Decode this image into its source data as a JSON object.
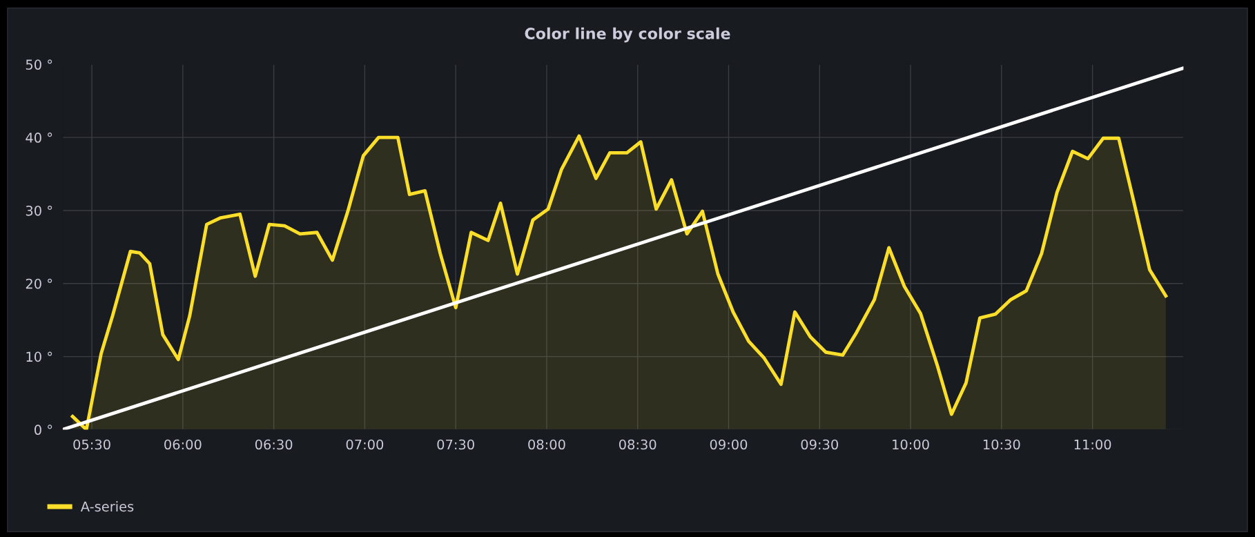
{
  "chart_data": {
    "type": "area",
    "title": "Color line by color scale",
    "xlim": [
      5.34,
      11.5
    ],
    "ylim": [
      0,
      50
    ],
    "xticks": [
      {
        "value": 5.5,
        "label": "05:30"
      },
      {
        "value": 6,
        "label": "06:00"
      },
      {
        "value": 6.5,
        "label": "06:30"
      },
      {
        "value": 7,
        "label": "07:00"
      },
      {
        "value": 7.5,
        "label": "07:30"
      },
      {
        "value": 8,
        "label": "08:00"
      },
      {
        "value": 8.5,
        "label": "08:30"
      },
      {
        "value": 9,
        "label": "09:00"
      },
      {
        "value": 9.5,
        "label": "09:30"
      },
      {
        "value": 10,
        "label": "10:00"
      },
      {
        "value": 10.5,
        "label": "10:30"
      },
      {
        "value": 11,
        "label": "11:00"
      }
    ],
    "yticks": [
      {
        "value": 0,
        "label": "0 °"
      },
      {
        "value": 10,
        "label": "10 °"
      },
      {
        "value": 20,
        "label": "20 °"
      },
      {
        "value": 30,
        "label": "30 °"
      },
      {
        "value": 40,
        "label": "40 °"
      },
      {
        "value": 50,
        "label": "50 °"
      }
    ],
    "grid": true,
    "legend": "bottom left",
    "series": [
      {
        "name": "A-series",
        "color": "#fade2a",
        "x": [
          5.394,
          5.47,
          5.551,
          5.614,
          5.712,
          5.763,
          5.818,
          5.89,
          5.975,
          6.038,
          6.131,
          6.208,
          6.314,
          6.398,
          6.475,
          6.559,
          6.644,
          6.737,
          6.822,
          6.907,
          6.992,
          7.076,
          7.182,
          7.246,
          7.331,
          7.415,
          7.5,
          7.585,
          7.678,
          7.746,
          7.839,
          7.924,
          8.008,
          8.081,
          8.178,
          8.271,
          8.347,
          8.441,
          8.517,
          8.602,
          8.686,
          8.771,
          8.856,
          8.941,
          9.025,
          9.11,
          9.195,
          9.288,
          9.364,
          9.449,
          9.534,
          9.627,
          9.703,
          9.801,
          9.881,
          9.966,
          10.055,
          10.148,
          10.225,
          10.305,
          10.381,
          10.466,
          10.551,
          10.636,
          10.72,
          10.805,
          10.89,
          10.975,
          11.059,
          11.144,
          11.229,
          11.314,
          11.403
        ],
        "values": [
          1.8,
          0,
          10.4,
          15.6,
          24.4,
          24.2,
          22.7,
          13,
          9.6,
          15.6,
          28.1,
          29,
          29.5,
          21,
          28.1,
          27.9,
          26.8,
          27,
          23.2,
          29.9,
          37.5,
          40,
          40,
          32.2,
          32.7,
          24.1,
          16.7,
          27,
          25.9,
          31,
          21.3,
          28.7,
          30.2,
          35.6,
          40.2,
          34.4,
          37.9,
          37.9,
          39.4,
          30.2,
          34.2,
          26.8,
          29.9,
          21.3,
          16.1,
          12.1,
          9.8,
          6.2,
          16.1,
          12.7,
          10.6,
          10.2,
          13.3,
          17.8,
          24.9,
          19.6,
          15.9,
          8.7,
          2.1,
          6.4,
          15.3,
          15.8,
          17.8,
          19,
          24.1,
          32.5,
          38.1,
          37.1,
          39.9,
          39.9,
          31,
          21.9,
          18.3
        ]
      },
      {
        "type": "line",
        "color": "#ffffff",
        "x": [
          5.34,
          11.5
        ],
        "values": [
          0,
          49.5
        ]
      }
    ]
  }
}
